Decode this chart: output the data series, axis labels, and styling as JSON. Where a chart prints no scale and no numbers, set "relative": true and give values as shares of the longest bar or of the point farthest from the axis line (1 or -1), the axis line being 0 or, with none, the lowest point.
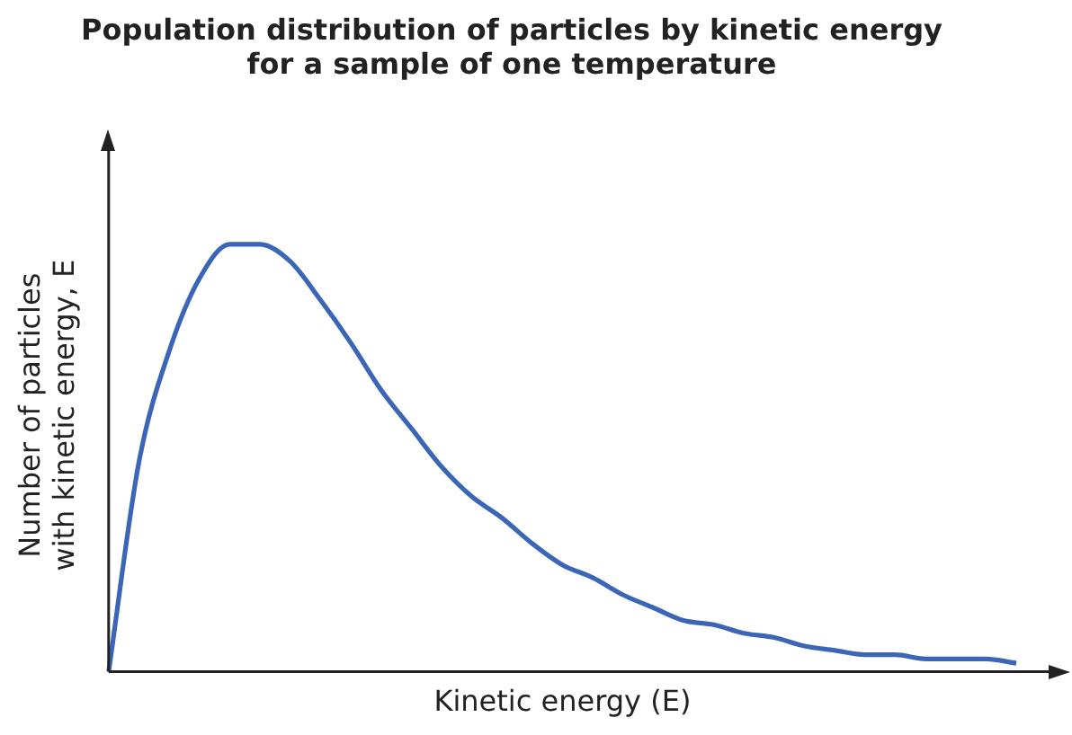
{
  "chart_data": {
    "type": "line",
    "title": "Population distribution of particles by kinetic energy for a sample of one temperature",
    "xlabel": "Kinetic energy (E)",
    "ylabel": "Number of particles with kinetic energy, E",
    "relative": true,
    "categories": [
      null,
      null,
      null,
      null,
      null,
      null,
      null,
      null,
      null,
      null,
      null,
      null,
      null,
      null,
      null,
      null,
      null,
      null,
      null,
      null,
      null,
      null,
      null,
      null,
      null,
      null,
      null,
      null,
      null,
      null,
      null
    ],
    "series": [
      {
        "color": "#3b66b8",
        "values": [
          0,
          0.49,
          0.75,
          0.92,
          1.0,
          1.0,
          0.96,
          0.87,
          0.77,
          0.66,
          0.57,
          0.48,
          0.41,
          0.36,
          0.3,
          0.25,
          0.22,
          0.18,
          0.15,
          0.12,
          0.11,
          0.09,
          0.08,
          0.06,
          0.05,
          0.04,
          0.04,
          0.03,
          0.03,
          0.03,
          0.02
        ]
      }
    ],
    "marker": "none",
    "grid": false,
    "legend": false,
    "tick_labels": false
  }
}
